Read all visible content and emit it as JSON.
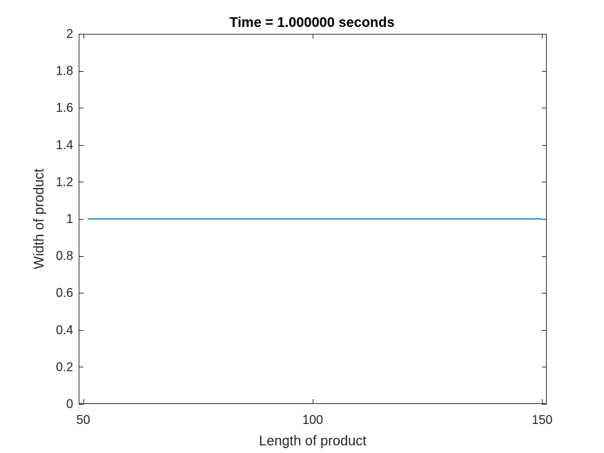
{
  "chart_data": {
    "type": "line",
    "title": "Time = 1.000000 seconds",
    "xlabel": "Length of product",
    "ylabel": "Width of product",
    "xlim": [
      49,
      151
    ],
    "ylim": [
      0,
      2
    ],
    "xticks": [
      50,
      100,
      150
    ],
    "xtick_labels": [
      "50",
      "100",
      "150"
    ],
    "yticks": [
      0,
      0.2,
      0.4,
      0.6,
      0.8,
      1,
      1.2,
      1.4,
      1.6,
      1.8,
      2
    ],
    "ytick_labels": [
      "0",
      "0.2",
      "0.4",
      "0.6",
      "0.8",
      "1",
      "1.2",
      "1.4",
      "1.6",
      "1.8",
      "2"
    ],
    "grid": false,
    "series": [
      {
        "color": "#0072BD",
        "x": [
          51,
          150
        ],
        "y": [
          1,
          1
        ]
      }
    ]
  }
}
